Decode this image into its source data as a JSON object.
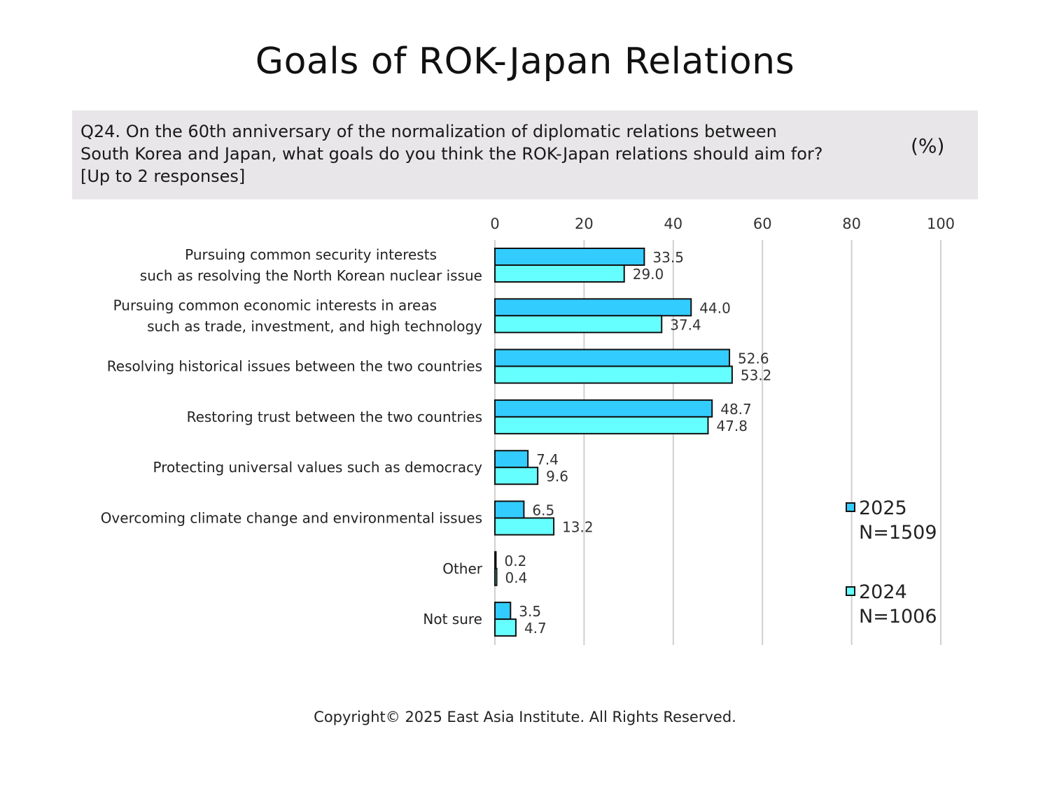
{
  "title": "Goals of ROK-Japan Relations",
  "question": {
    "lines": [
      "Q24. On the 60th anniversary of the normalization of diplomatic relations between",
      "South Korea and Japan, what goals do you think the ROK-Japan relations should aim for?",
      "[Up to 2 responses]"
    ],
    "unit": "(%)"
  },
  "copyright": "Copyright© 2025 East Asia Institute. All Rights Reserved.",
  "colors": {
    "series_2025": "#33ccff",
    "series_2024": "#66ffff",
    "gridline": "#d0d0d0",
    "question_bg": "#e8e6e8"
  },
  "chart_data": {
    "type": "bar",
    "orientation": "horizontal",
    "xlim": [
      0,
      100
    ],
    "xticks": [
      "0",
      "20",
      "40",
      "60",
      "80",
      "100"
    ],
    "grid": true,
    "legend_position": "right",
    "categories": [
      [
        "Pursuing common security interests",
        "such as resolving the North Korean nuclear issue"
      ],
      [
        "Pursuing common economic interests in areas",
        "such as trade, investment, and high technology"
      ],
      [
        "Resolving historical issues between the two countries"
      ],
      [
        "Restoring trust between the two countries"
      ],
      [
        "Protecting universal values such as democracy"
      ],
      [
        "Overcoming climate change and environmental issues"
      ],
      [
        "Other"
      ],
      [
        "Not sure"
      ]
    ],
    "series": [
      {
        "name": "2025",
        "note": "N=1509",
        "color": "#33ccff",
        "values": [
          33.5,
          44.0,
          52.6,
          48.7,
          7.4,
          6.5,
          0.2,
          3.5
        ],
        "labels": [
          "33.5",
          "44.0",
          "52.6",
          "48.7",
          "7.4",
          "6.5",
          "0.2",
          "3.5"
        ]
      },
      {
        "name": "2024",
        "note": "N=1006",
        "color": "#66ffff",
        "values": [
          29.0,
          37.4,
          53.2,
          47.8,
          9.6,
          13.2,
          0.4,
          4.7
        ],
        "labels": [
          "29.0",
          "37.4",
          "53.2",
          "47.8",
          "9.6",
          "13.2",
          "0.4",
          "4.7"
        ]
      }
    ]
  }
}
